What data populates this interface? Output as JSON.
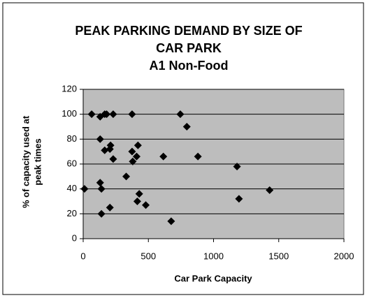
{
  "chart_data": {
    "type": "scatter",
    "title": [
      "PEAK PARKING DEMAND BY SIZE OF",
      "CAR PARK"
    ],
    "subtitle": "A1 Non-Food",
    "xlabel": "Car Park Capacity",
    "ylabel": [
      "% of capacity used at",
      "peak times"
    ],
    "x": [
      10,
      65,
      130,
      165,
      180,
      230,
      375,
      745,
      130,
      165,
      205,
      210,
      230,
      130,
      140,
      140,
      205,
      330,
      375,
      380,
      410,
      420,
      430,
      415,
      480,
      615,
      675,
      795,
      880,
      1180,
      1195,
      1430
    ],
    "values": [
      40,
      100,
      98,
      100,
      100,
      100,
      100,
      100,
      80,
      71,
      72,
      75,
      64,
      45,
      40,
      20,
      25,
      50,
      70,
      62,
      66,
      75,
      36,
      30,
      27,
      66,
      14,
      90,
      66,
      58,
      32,
      39
    ],
    "color": "#000000",
    "xlim": [
      0,
      2000
    ],
    "xticks": [
      0,
      500,
      1000,
      1500,
      2000
    ],
    "ylim": [
      0,
      120
    ],
    "yticks": [
      0,
      20,
      40,
      60,
      80,
      100,
      120
    ],
    "grid": true
  }
}
